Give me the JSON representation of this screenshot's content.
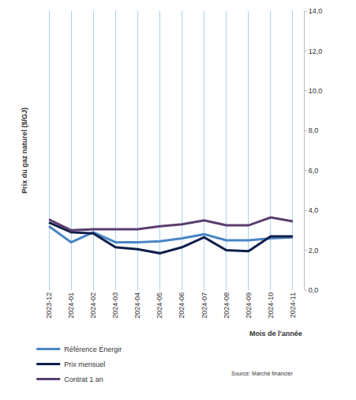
{
  "chart_data": {
    "type": "line",
    "ylabel": "Prix du gaz naturel ($/GJ)",
    "xlabel": "Mois de l'année",
    "source": "Source: Marché financier",
    "categories": [
      "2023-12",
      "2024-01",
      "2024-02",
      "2024-03",
      "2024-04",
      "2024-05",
      "2024-06",
      "2024-07",
      "2024-08",
      "2024-09",
      "2024-10",
      "2024-11"
    ],
    "series": [
      {
        "name": "Référence Énergir",
        "color": "#4a86c5",
        "values": [
          3.2,
          2.4,
          2.9,
          2.4,
          2.4,
          2.45,
          2.6,
          2.8,
          2.5,
          2.5,
          2.6,
          2.65
        ]
      },
      {
        "name": "Prix mensuel",
        "color": "#0d1e4a",
        "values": [
          3.4,
          2.9,
          2.85,
          2.15,
          2.05,
          1.85,
          2.15,
          2.65,
          2.0,
          1.95,
          2.7,
          2.7
        ]
      },
      {
        "name": "Contrat 1 an",
        "color": "#5a3e6e",
        "values": [
          3.55,
          3.0,
          3.05,
          3.05,
          3.05,
          3.2,
          3.3,
          3.5,
          3.25,
          3.25,
          3.65,
          3.45
        ]
      }
    ],
    "ylim": [
      0,
      14
    ],
    "yticks": [
      {
        "value": 0,
        "label": "0,0"
      },
      {
        "value": 2,
        "label": "2,0"
      },
      {
        "value": 4,
        "label": "4,0"
      },
      {
        "value": 6,
        "label": "6,0"
      },
      {
        "value": 8,
        "label": "8,0"
      },
      {
        "value": 10,
        "label": "10,0"
      },
      {
        "value": 12,
        "label": "12,0"
      },
      {
        "value": 14,
        "label": "14,0"
      }
    ],
    "grid": true,
    "legend": "bottom-left"
  }
}
